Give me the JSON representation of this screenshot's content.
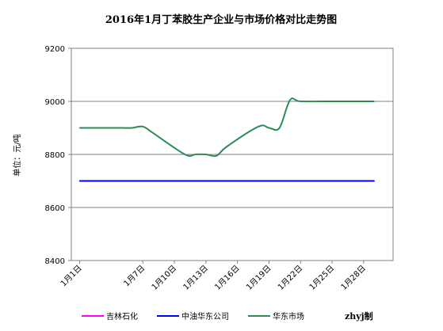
{
  "chart_data": {
    "type": "line",
    "title": "2016年1月丁苯胶生产企业与市场价格对比走势图",
    "ylabel": "单位：元/吨",
    "ylim": [
      8400,
      9200
    ],
    "yticks": [
      8400,
      8600,
      8800,
      9000,
      9200
    ],
    "grid": "horizontal",
    "legend_position": "bottom",
    "credit": "zhyj制",
    "x": [
      "1月1日",
      "1月4日",
      "1月5日",
      "1月6日",
      "1月7日",
      "1月8日",
      "1月11日",
      "1月12日",
      "1月13日",
      "1月14日",
      "1月15日",
      "1月18日",
      "1月19日",
      "1月20日",
      "1月21日",
      "1月22日",
      "1月25日",
      "1月26日",
      "1月27日",
      "1月28日",
      "1月29日"
    ],
    "x_positions": [
      1,
      4,
      5,
      6,
      7,
      8,
      11,
      12,
      13,
      14,
      15,
      18,
      19,
      20,
      21,
      22,
      25,
      26,
      27,
      28,
      29
    ],
    "xtick_labels": [
      "1月1日",
      "1月7日",
      "1月10日",
      "1月13日",
      "1月16日",
      "1月19日",
      "1月22日",
      "1月25日",
      "1月28日"
    ],
    "xtick_positions": [
      1,
      7,
      10,
      13,
      16,
      19,
      22,
      25,
      28
    ],
    "series": [
      {
        "name": "吉林石化",
        "color": "#ff00ff",
        "values": [
          8700,
          8700,
          8700,
          8700,
          8700,
          8700,
          8700,
          8700,
          8700,
          8700,
          8700,
          8700,
          8700,
          8700,
          8700,
          8700,
          8700,
          8700,
          8700,
          8700,
          8700
        ]
      },
      {
        "name": "中油华东公司",
        "color": "#0000ff",
        "values": [
          8700,
          8700,
          8700,
          8700,
          8700,
          8700,
          8700,
          8700,
          8700,
          8700,
          8700,
          8700,
          8700,
          8700,
          8700,
          8700,
          8700,
          8700,
          8700,
          8700,
          8700
        ]
      },
      {
        "name": "华东市场",
        "color": "#2e8b57",
        "values": [
          8900,
          8900,
          8900,
          8900,
          8905,
          8880,
          8800,
          8800,
          8800,
          8795,
          8830,
          8905,
          8900,
          8900,
          9005,
          9000,
          9000,
          9000,
          9000,
          9000,
          9000
        ]
      }
    ]
  }
}
